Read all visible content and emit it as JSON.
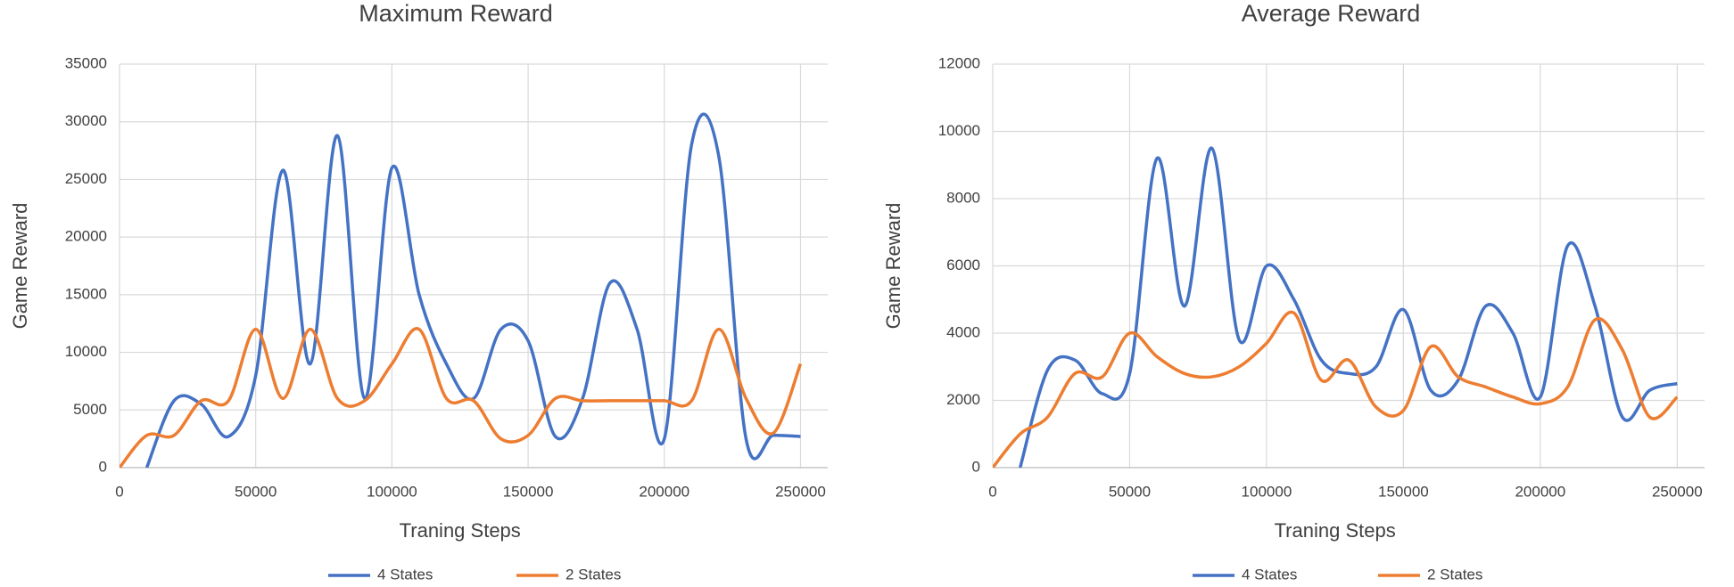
{
  "chart_data": [
    {
      "type": "line",
      "title": "Maximum Reward",
      "x_label": "Traning Steps",
      "y_label": "Game Reward",
      "x": [
        0,
        10000,
        20000,
        30000,
        40000,
        50000,
        60000,
        70000,
        80000,
        90000,
        100000,
        110000,
        120000,
        130000,
        140000,
        150000,
        160000,
        170000,
        180000,
        190000,
        200000,
        210000,
        220000,
        230000,
        240000,
        250000
      ],
      "xlim": [
        0,
        260000
      ],
      "xticks": [
        0,
        50000,
        100000,
        150000,
        200000,
        250000
      ],
      "ylim": [
        0,
        35000
      ],
      "yticks": [
        0,
        5000,
        10000,
        15000,
        20000,
        25000,
        30000,
        35000
      ],
      "grid": true,
      "legend": "bottom",
      "series": [
        {
          "name": "4 States",
          "color": "#4472c4",
          "values": [
            null,
            0,
            5800,
            5500,
            2700,
            8000,
            25800,
            9000,
            28800,
            6000,
            26000,
            15000,
            9000,
            6000,
            12000,
            11000,
            2700,
            6000,
            16000,
            12000,
            2500,
            28000,
            27000,
            2500,
            2800,
            2700
          ]
        },
        {
          "name": "2 States",
          "color": "#ed7d31",
          "values": [
            0,
            2800,
            2800,
            5800,
            5800,
            12000,
            6000,
            12000,
            6000,
            5800,
            9000,
            12000,
            6000,
            5800,
            2500,
            2800,
            6000,
            5800,
            5800,
            5800,
            5800,
            5800,
            12000,
            6000,
            3000,
            9000
          ]
        }
      ]
    },
    {
      "type": "line",
      "title": "Average Reward",
      "x_label": "Traning Steps",
      "y_label": "Game Reward",
      "x": [
        0,
        10000,
        20000,
        30000,
        40000,
        50000,
        60000,
        70000,
        80000,
        90000,
        100000,
        110000,
        120000,
        130000,
        140000,
        150000,
        160000,
        170000,
        180000,
        190000,
        200000,
        210000,
        220000,
        230000,
        240000,
        250000
      ],
      "xlim": [
        0,
        260000
      ],
      "xticks": [
        0,
        50000,
        100000,
        150000,
        200000,
        250000
      ],
      "ylim": [
        0,
        12000
      ],
      "yticks": [
        0,
        2000,
        4000,
        6000,
        8000,
        10000,
        12000
      ],
      "grid": true,
      "legend": "bottom",
      "series": [
        {
          "name": "4 States",
          "color": "#4472c4",
          "values": [
            null,
            0,
            2900,
            3200,
            2200,
            2800,
            9200,
            4800,
            9500,
            3800,
            6000,
            5000,
            3200,
            2800,
            3000,
            4700,
            2300,
            2600,
            4800,
            4000,
            2100,
            6600,
            4800,
            1500,
            2300,
            2500
          ]
        },
        {
          "name": "2 States",
          "color": "#ed7d31",
          "values": [
            0,
            1000,
            1500,
            2800,
            2700,
            4000,
            3300,
            2800,
            2700,
            3000,
            3700,
            4600,
            2600,
            3200,
            1800,
            1700,
            3600,
            2700,
            2400,
            2100,
            1900,
            2400,
            4400,
            3500,
            1500,
            2100
          ]
        }
      ]
    }
  ]
}
